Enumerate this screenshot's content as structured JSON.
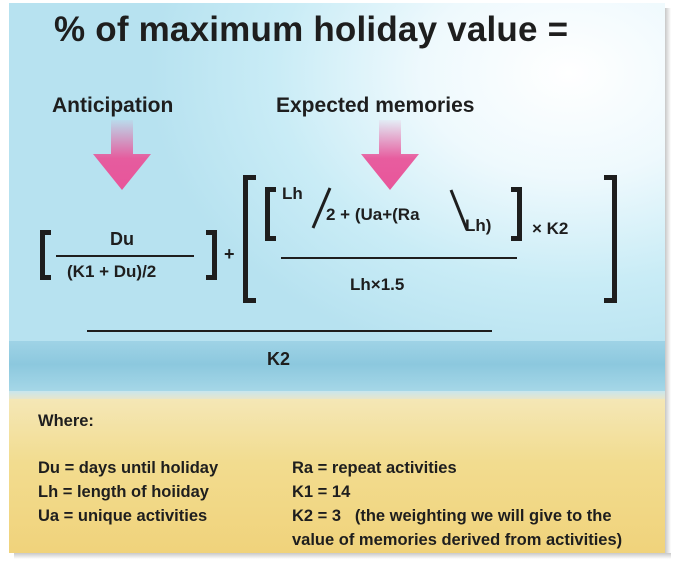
{
  "title": "% of maximum holiday value =",
  "labels": {
    "anticipation": "Anticipation",
    "expected_memories": "Expected memories"
  },
  "formula": {
    "anticipation_numerator": "Du",
    "anticipation_denominator": "(K1 + Du)/2",
    "plus": "+",
    "lh_over_2_top": "Lh",
    "lh_over_2_bottom": "2 + (Ua+(Ra",
    "ra_over_lh_bottom": "Lh)",
    "times_k2": "× K2",
    "memories_denominator": "Lh×1.5",
    "overall_denominator": "K2"
  },
  "legend": {
    "heading": "Where:",
    "left": [
      "Du = days until holiday",
      "Lh = length of hoiiday",
      "Ua = unique activities"
    ],
    "right": [
      "Ra = repeat activities",
      "K1 = 14",
      "K2 = 3   (the weighting we will give to the",
      "value of memories derived from activities)"
    ]
  },
  "colors": {
    "arrow": "#e8559a",
    "text": "#1e1e1e",
    "sky": "#c9ecf6",
    "sea": "#8cc8de",
    "sand": "#f2dc8f"
  }
}
